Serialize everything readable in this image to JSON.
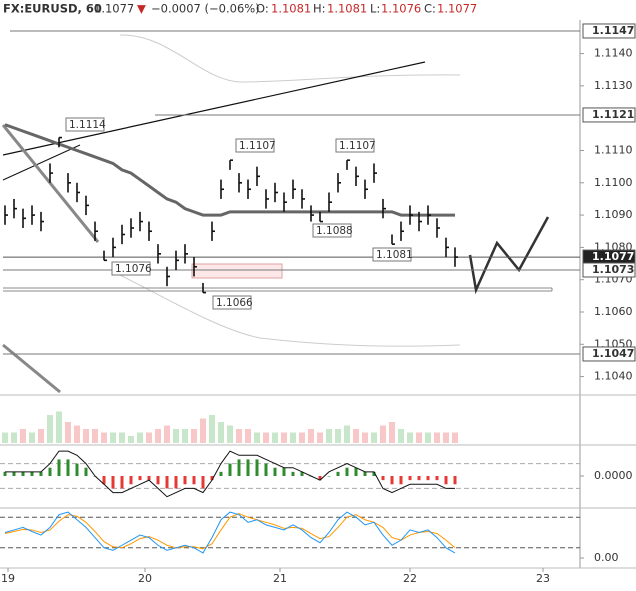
{
  "header": {
    "symbol": "FX:EURUSD, 60",
    "last": "1.1077",
    "arrow": "▼",
    "change": "−0.0007 (−0.06%)",
    "o_label": "O:",
    "o": "1.1081",
    "h_label": "H:",
    "h": "1.1081",
    "l_label": "L:",
    "l": "1.1076",
    "c_label": "C:",
    "c": "1.1077"
  },
  "chart_data": {
    "type": "ohlc",
    "high": [
      1.1093,
      1.1095,
      1.1092,
      1.1093,
      1.1091,
      1.1106,
      1.1114,
      1.1103,
      1.11,
      1.1096,
      1.1088,
      1.1079,
      1.1083,
      1.1087,
      1.1089,
      1.1091,
      1.1088,
      1.1081,
      1.1074,
      1.1079,
      1.1081,
      1.1077,
      1.1069,
      1.1088,
      1.1101,
      1.1107,
      1.1103,
      1.1101,
      1.1105,
      1.1098,
      1.11,
      1.1097,
      1.1101,
      1.1098,
      1.1093,
      1.1091,
      1.1097,
      1.1103,
      1.1107,
      1.1105,
      1.1101,
      1.1106,
      1.1095,
      1.1084,
      1.1088,
      1.1093,
      1.1091,
      1.1093,
      1.1089,
      1.1083,
      1.108
    ],
    "low": [
      1.1087,
      1.1089,
      1.1086,
      1.1087,
      1.1085,
      1.11,
      1.1111,
      1.1097,
      1.1094,
      1.109,
      1.1082,
      1.1076,
      1.1077,
      1.1081,
      1.1083,
      1.1085,
      1.1082,
      1.1075,
      1.1068,
      1.1073,
      1.1075,
      1.1071,
      1.1066,
      1.1082,
      1.1095,
      1.1104,
      1.1097,
      1.1095,
      1.1099,
      1.1092,
      1.1094,
      1.1091,
      1.1095,
      1.1092,
      1.1088,
      1.1088,
      1.1091,
      1.1097,
      1.1104,
      1.1099,
      1.1095,
      1.11,
      1.1089,
      1.1081,
      1.1082,
      1.1087,
      1.1085,
      1.1087,
      1.1083,
      1.1077,
      1.1074
    ],
    "close": [
      1.109,
      1.1092,
      1.1089,
      1.109,
      1.1088,
      1.1103,
      1.1114,
      1.11,
      1.1097,
      1.1093,
      1.1085,
      1.1076,
      1.108,
      1.1084,
      1.1086,
      1.1088,
      1.1085,
      1.1078,
      1.1071,
      1.1076,
      1.1078,
      1.1074,
      1.1066,
      1.1085,
      1.1098,
      1.1107,
      1.11,
      1.1098,
      1.1102,
      1.1095,
      1.1097,
      1.1094,
      1.1098,
      1.1095,
      1.109,
      1.1088,
      1.1094,
      1.11,
      1.1107,
      1.1102,
      1.1098,
      1.1103,
      1.1092,
      1.1081,
      1.1085,
      1.109,
      1.1088,
      1.109,
      1.1086,
      1.108,
      1.1077
    ],
    "ma": [
      1.1118,
      1.1117,
      1.1116,
      1.1115,
      1.1114,
      1.1113,
      1.1112,
      1.1111,
      1.111,
      1.1109,
      1.1108,
      1.1107,
      1.1106,
      1.1104,
      1.1103,
      1.1101,
      1.1099,
      1.1097,
      1.1095,
      1.1094,
      1.1092,
      1.1091,
      1.109,
      1.109,
      1.109,
      1.1091,
      1.1091,
      1.1091,
      1.1091,
      1.1091,
      1.1091,
      1.1091,
      1.1091,
      1.1091,
      1.1091,
      1.1091,
      1.1091,
      1.1091,
      1.1091,
      1.1091,
      1.1091,
      1.1091,
      1.1091,
      1.1091,
      1.109,
      1.109,
      1.109,
      1.109,
      1.109,
      1.109,
      1.109
    ],
    "color": "#111111",
    "ma_color": "#666666",
    "ylim": [
      1.10343,
      1.11504
    ],
    "yticks": [
      {
        "value": 1.114,
        "label": "1.1140"
      },
      {
        "value": 1.113,
        "label": "1.1130"
      },
      {
        "value": 1.111,
        "label": "1.1110"
      },
      {
        "value": 1.11,
        "label": "1.1100"
      },
      {
        "value": 1.109,
        "label": "1.1090"
      },
      {
        "value": 1.108,
        "label": "1.1080"
      },
      {
        "value": 1.107,
        "label": "1.1070"
      },
      {
        "value": 1.106,
        "label": "1.1060"
      },
      {
        "value": 1.105,
        "label": "1.1050"
      },
      {
        "value": 1.104,
        "label": "1.1040"
      }
    ],
    "price_levels": [
      {
        "value": 1.1147,
        "label": "1.1147"
      },
      {
        "value": 1.1121,
        "label": "1.1121"
      },
      {
        "value": 1.1077,
        "label": "1.1077"
      },
      {
        "value": 1.1073,
        "label": "1.1073"
      },
      {
        "value": 1.1047,
        "label": "1.1047"
      }
    ],
    "annotations": [
      "1.1114",
      "1.1076",
      "1.1066",
      "1.1107",
      "1.1088",
      "1.1107",
      "1.1081"
    ],
    "x_labels": [
      "19",
      "20",
      "21",
      "22",
      "23"
    ],
    "volume": [
      3,
      3,
      4,
      3,
      4,
      8,
      9,
      6,
      5,
      4,
      4,
      3,
      3,
      3,
      2,
      3,
      3,
      4,
      5,
      4,
      4,
      4,
      7,
      8,
      6,
      5,
      4,
      4,
      3,
      3,
      3,
      3,
      3,
      3,
      4,
      3,
      4,
      4,
      5,
      4,
      3,
      3,
      5,
      6,
      4,
      3,
      3,
      3,
      3,
      3,
      3
    ],
    "macd_hist": [
      0.0001,
      0.0001,
      0.0001,
      0.0001,
      0.0001,
      0.0002,
      0.0004,
      0.0004,
      0.0003,
      0.0002,
      0.0,
      -0.0002,
      -0.0003,
      -0.0003,
      -0.0002,
      -0.0001,
      -0.0001,
      -0.0002,
      -0.0003,
      -0.0003,
      -0.0002,
      -0.0002,
      -0.0003,
      -0.0001,
      0.0001,
      0.0003,
      0.0004,
      0.0004,
      0.0004,
      0.0003,
      0.0002,
      0.0002,
      0.0001,
      0.0001,
      0.0,
      -0.0001,
      0.0,
      0.0001,
      0.0002,
      0.0002,
      0.0001,
      0.0001,
      -0.0001,
      -0.0002,
      -0.0002,
      -0.0001,
      -0.0001,
      -0.0001,
      -0.0001,
      -0.0002,
      -0.0002
    ],
    "macd_line": [
      0.0001,
      0.0001,
      0.0001,
      0.0001,
      0.0001,
      0.0003,
      0.0006,
      0.0006,
      0.0005,
      0.0003,
      0.0,
      -0.0002,
      -0.0004,
      -0.0004,
      -0.0003,
      -0.0002,
      -0.0001,
      -0.0003,
      -0.0005,
      -0.0004,
      -0.0003,
      -0.0003,
      -0.0004,
      -0.0001,
      0.0003,
      0.0006,
      0.0005,
      0.0005,
      0.0005,
      0.0004,
      0.0003,
      0.0002,
      0.0002,
      0.0001,
      0.0,
      -0.0001,
      0.0001,
      0.0002,
      0.0003,
      0.0002,
      0.0001,
      0.0001,
      -0.0003,
      -0.0004,
      -0.0003,
      -0.0002,
      -0.0002,
      -0.0002,
      -0.0002,
      -0.0003,
      -0.0003
    ],
    "macd_ylim": [
      -0.0007,
      0.0007
    ],
    "macd_yticks": [
      {
        "value": 0,
        "label": "0.0000"
      }
    ],
    "macd_levels": [
      0.0003,
      -0.0003
    ],
    "stoch_k": [
      50,
      55,
      60,
      52,
      45,
      60,
      85,
      90,
      75,
      60,
      40,
      20,
      15,
      25,
      35,
      45,
      40,
      25,
      15,
      20,
      25,
      20,
      10,
      40,
      75,
      90,
      85,
      70,
      75,
      65,
      60,
      55,
      65,
      55,
      40,
      30,
      50,
      75,
      90,
      80,
      65,
      70,
      45,
      25,
      35,
      55,
      50,
      55,
      40,
      20,
      10
    ],
    "stoch_d": [
      48,
      52,
      56,
      55,
      50,
      55,
      72,
      85,
      82,
      70,
      52,
      32,
      22,
      20,
      28,
      38,
      42,
      35,
      25,
      20,
      22,
      22,
      18,
      28,
      55,
      80,
      87,
      80,
      75,
      70,
      65,
      58,
      60,
      58,
      48,
      38,
      42,
      60,
      80,
      85,
      75,
      70,
      60,
      40,
      35,
      45,
      50,
      52,
      48,
      35,
      20
    ],
    "stoch_ylim": [
      0,
      100
    ],
    "stoch_yticks": [
      {
        "value": 0,
        "label": "0.00"
      }
    ],
    "stoch_levels": [
      20,
      80
    ]
  }
}
